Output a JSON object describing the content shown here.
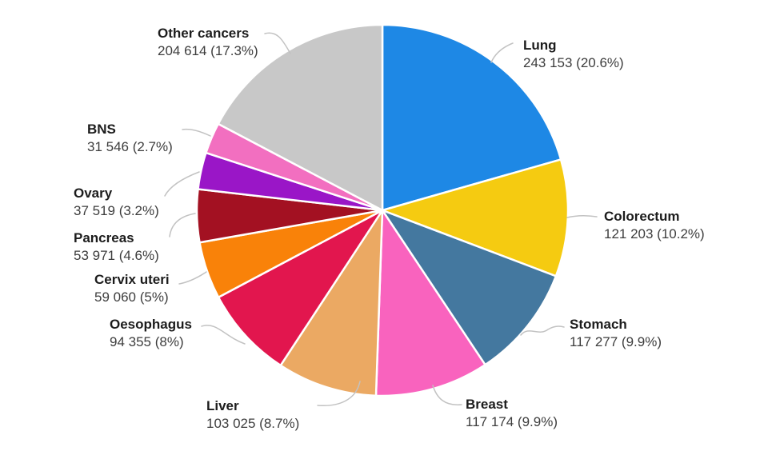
{
  "page": {
    "background": "#FFFFFF"
  },
  "chart_data": {
    "type": "pie",
    "title": "",
    "direction": "clockwise",
    "start_angle_deg": 0,
    "slice_stroke_color": "#FFFFFF",
    "leader_line_color": "#C2C2C2",
    "slices": [
      {
        "id": "lung",
        "label": "Lung",
        "value": 243153,
        "pct": 20.6,
        "display": "243 153 (20.6%)",
        "color": "#1E88E5"
      },
      {
        "id": "colorectum",
        "label": "Colorectum",
        "value": 121203,
        "pct": 10.2,
        "display": "121 203 (10.2%)",
        "color": "#F5CB11"
      },
      {
        "id": "stomach",
        "label": "Stomach",
        "value": 117277,
        "pct": 9.9,
        "display": "117 277 (9.9%)",
        "color": "#44789F"
      },
      {
        "id": "breast",
        "label": "Breast",
        "value": 117174,
        "pct": 9.9,
        "display": "117 174 (9.9%)",
        "color": "#F963BE"
      },
      {
        "id": "liver",
        "label": "Liver",
        "value": 103025,
        "pct": 8.7,
        "display": "103 025 (8.7%)",
        "color": "#EBA963"
      },
      {
        "id": "oesophagus",
        "label": "Oesophagus",
        "value": 94355,
        "pct": 8.0,
        "display": "94 355 (8%)",
        "color": "#E2164E"
      },
      {
        "id": "cervix-uteri",
        "label": "Cervix uteri",
        "value": 59060,
        "pct": 5.0,
        "display": "59 060 (5%)",
        "color": "#F98209"
      },
      {
        "id": "pancreas",
        "label": "Pancreas",
        "value": 53971,
        "pct": 4.6,
        "display": "53 971 (4.6%)",
        "color": "#A31122"
      },
      {
        "id": "ovary",
        "label": "Ovary",
        "value": 37519,
        "pct": 3.2,
        "display": "37 519 (3.2%)",
        "color": "#9A16C7"
      },
      {
        "id": "bns",
        "label": "BNS",
        "value": 31546,
        "pct": 2.7,
        "display": "31 546 (2.7%)",
        "color": "#F26FC0"
      },
      {
        "id": "other",
        "label": "Other cancers",
        "value": 204614,
        "pct": 17.3,
        "display": "204 614 (17.3%)",
        "color": "#C8C8C8"
      }
    ]
  }
}
